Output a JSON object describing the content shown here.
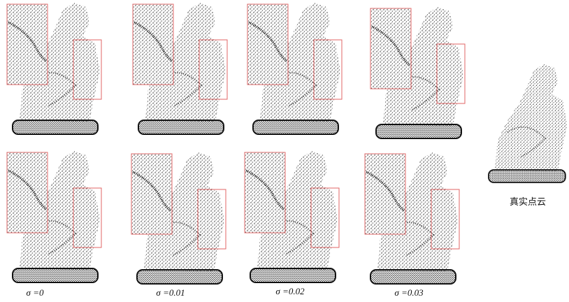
{
  "panels": [
    {
      "label": "σ =0"
    },
    {
      "label": "σ =0.01"
    },
    {
      "label": "σ =0.02"
    },
    {
      "label": "σ =0.03"
    }
  ],
  "ground_truth": {
    "label": "真实点云"
  }
}
